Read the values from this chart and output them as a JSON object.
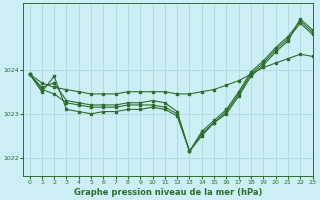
{
  "background_color": "#cceef5",
  "line_color": "#2d6e2d",
  "grid_color": "#aad4dc",
  "title": "Graphe pression niveau de la mer (hPa)",
  "xlim": [
    -0.5,
    23
  ],
  "ylim": [
    1021.6,
    1025.5
  ],
  "yticks": [
    1022,
    1023,
    1024
  ],
  "xticks": [
    0,
    1,
    2,
    3,
    4,
    5,
    6,
    7,
    8,
    9,
    10,
    11,
    12,
    13,
    14,
    15,
    16,
    17,
    18,
    19,
    20,
    21,
    22,
    23
  ],
  "series": [
    [
      1023.85,
      1023.65,
      1023.6,
      1023.55,
      1023.5,
      1023.45,
      1023.4,
      1023.4,
      1023.45,
      1023.5,
      1023.5,
      1023.45,
      1023.4,
      1023.4,
      1023.45,
      1023.5,
      1023.6,
      1023.7,
      1023.85,
      1024.0,
      1024.1,
      1024.2,
      1024.3,
      1024.3
    ],
    [
      1023.85,
      1023.55,
      1023.45,
      1023.3,
      1023.25,
      1023.2,
      1023.2,
      1023.2,
      1023.2,
      1023.25,
      1023.25,
      1023.2,
      1023.05,
      1022.15,
      1022.6,
      1022.85,
      1023.1,
      1023.45,
      1023.9,
      1024.15,
      1024.45,
      1024.7,
      1024.95,
      1024.75
    ],
    [
      1023.85,
      1023.65,
      1023.75,
      1023.35,
      1023.3,
      1023.25,
      1023.25,
      1023.25,
      1023.3,
      1023.3,
      1023.3,
      1023.25,
      1023.05,
      1022.15,
      1022.6,
      1022.85,
      1023.1,
      1023.45,
      1023.9,
      1024.15,
      1024.45,
      1024.7,
      1024.95,
      1024.75
    ],
    [
      1023.85,
      1023.5,
      1023.85,
      1023.15,
      1023.1,
      1023.05,
      1023.1,
      1023.1,
      1023.15,
      1023.15,
      1023.2,
      1023.15,
      1023.0,
      1022.15,
      1022.55,
      1022.8,
      1023.0,
      1023.4,
      1023.85,
      1024.1,
      1024.4,
      1024.65,
      1025.1,
      1024.85
    ]
  ]
}
